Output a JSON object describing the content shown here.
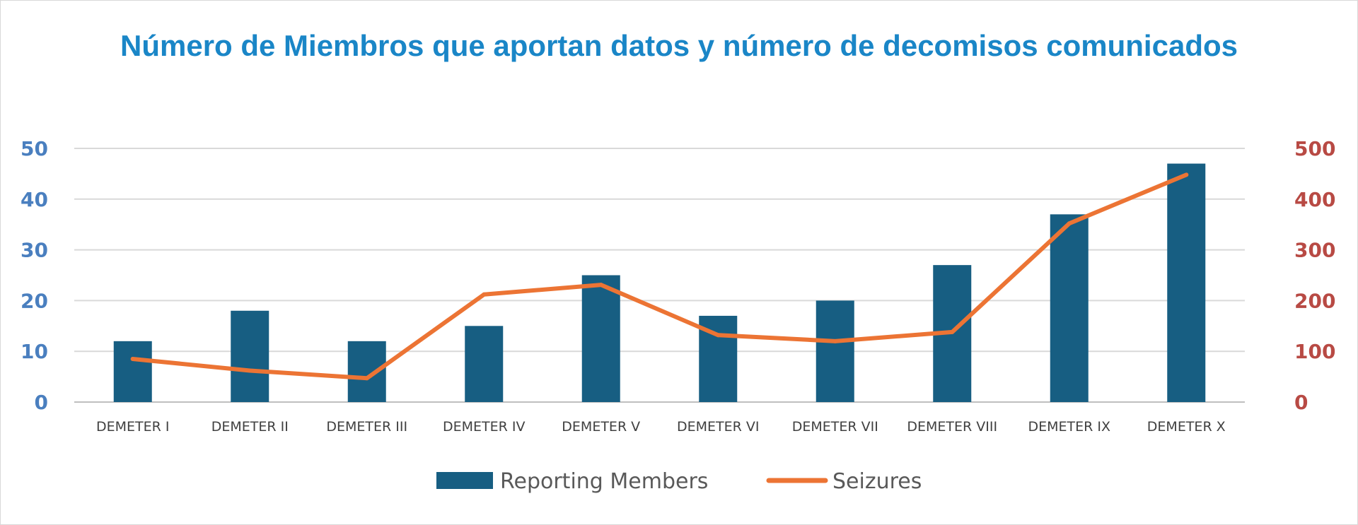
{
  "chart_data": {
    "type": "bar",
    "title": "Número de Miembros que aportan datos y número de decomisos comunicados",
    "categories": [
      "DEMETER I",
      "DEMETER II",
      "DEMETER III",
      "DEMETER IV",
      "DEMETER V",
      "DEMETER VI",
      "DEMETER VII",
      "DEMETER VIII",
      "DEMETER IX",
      "DEMETER X"
    ],
    "series": [
      {
        "name": "Reporting Members",
        "type": "bar",
        "axis": "left",
        "color": "#175e82",
        "values": [
          12,
          18,
          12,
          15,
          25,
          17,
          20,
          27,
          37,
          47
        ]
      },
      {
        "name": "Seizures",
        "type": "line",
        "axis": "right",
        "color": "#ec7434",
        "values": [
          85,
          62,
          47,
          212,
          231,
          132,
          120,
          138,
          352,
          448
        ]
      }
    ],
    "ylim_left": [
      0,
      50
    ],
    "yticks_left": [
      "0",
      "10",
      "20",
      "30",
      "40",
      "50"
    ],
    "ylim_right": [
      0,
      500
    ],
    "yticks_right": [
      "0",
      "100",
      "200",
      "300",
      "400",
      "500"
    ],
    "grid": true,
    "legend_position": "bottom"
  }
}
